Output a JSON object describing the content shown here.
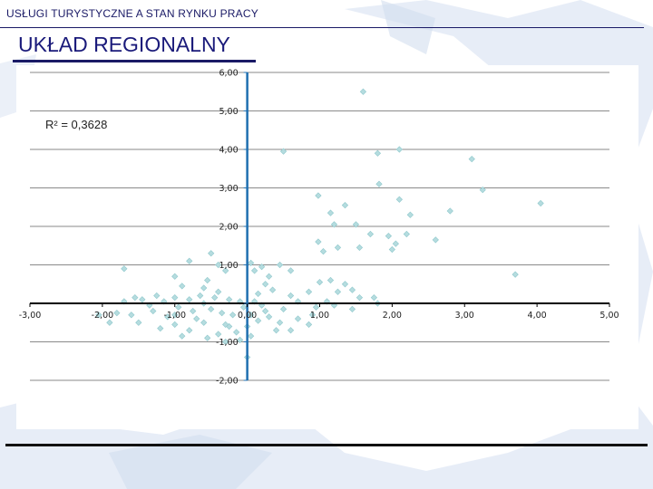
{
  "header": {
    "title": "USŁUGI TURYSTYCZNE A STAN RYNKU PRACY"
  },
  "slide": {
    "title": "UKŁAD REGIONALNY"
  },
  "colors": {
    "point": "#b5dcdf",
    "point_stroke": "#8fc8cc",
    "y_axis": "#1f6fb0",
    "grid": "#8a8a8a",
    "map": "#dde6f4"
  },
  "chart_data": {
    "type": "scatter",
    "xlim": [
      -3,
      5
    ],
    "ylim": [
      -2,
      6
    ],
    "grid": "horizontal",
    "x_ticks": [
      "-3,00",
      "-2,00",
      "-1,00",
      "0,00",
      "1,00",
      "2,00",
      "3,00",
      "4,00",
      "5,00"
    ],
    "y_ticks": [
      "-2,00",
      "-1,00",
      "0,00",
      "1,00",
      "2,00",
      "3,00",
      "4,00",
      "5,00",
      "6,00"
    ],
    "annotation": "R² = 0,3628",
    "points": [
      [
        1.6,
        5.5
      ],
      [
        0.5,
        3.95
      ],
      [
        1.8,
        3.9
      ],
      [
        2.1,
        4.0
      ],
      [
        3.1,
        3.75
      ],
      [
        0.98,
        2.8
      ],
      [
        1.82,
        3.1
      ],
      [
        2.1,
        2.7
      ],
      [
        3.25,
        2.95
      ],
      [
        1.35,
        2.55
      ],
      [
        1.15,
        2.35
      ],
      [
        1.5,
        2.05
      ],
      [
        2.25,
        2.3
      ],
      [
        2.8,
        2.4
      ],
      [
        4.05,
        2.6
      ],
      [
        1.2,
        2.05
      ],
      [
        0.98,
        1.6
      ],
      [
        1.25,
        1.45
      ],
      [
        1.55,
        1.45
      ],
      [
        1.7,
        1.8
      ],
      [
        1.95,
        1.75
      ],
      [
        2.2,
        1.8
      ],
      [
        2.05,
        1.55
      ],
      [
        2.6,
        1.65
      ],
      [
        2.0,
        1.4
      ],
      [
        1.05,
        1.35
      ],
      [
        3.7,
        0.75
      ],
      [
        0.45,
        1.0
      ],
      [
        0.6,
        0.85
      ],
      [
        0.3,
        0.7
      ],
      [
        0.2,
        0.95
      ],
      [
        0.05,
        1.05
      ],
      [
        0.1,
        0.85
      ],
      [
        -0.5,
        1.3
      ],
      [
        -0.8,
        1.1
      ],
      [
        -1.7,
        0.9
      ],
      [
        -0.4,
        1.0
      ],
      [
        -0.3,
        0.85
      ],
      [
        -1.0,
        0.7
      ],
      [
        -0.9,
        0.45
      ],
      [
        -0.55,
        0.6
      ],
      [
        -0.6,
        0.4
      ],
      [
        0.25,
        0.5
      ],
      [
        0.35,
        0.35
      ],
      [
        0.6,
        0.2
      ],
      [
        0.85,
        0.3
      ],
      [
        1.0,
        0.55
      ],
      [
        1.15,
        0.6
      ],
      [
        1.35,
        0.5
      ],
      [
        1.25,
        0.3
      ],
      [
        1.45,
        0.35
      ],
      [
        1.55,
        0.15
      ],
      [
        1.75,
        0.15
      ],
      [
        1.8,
        0.0
      ],
      [
        1.45,
        -0.15
      ],
      [
        1.2,
        -0.05
      ],
      [
        0.95,
        -0.1
      ],
      [
        0.9,
        -0.3
      ],
      [
        0.7,
        -0.4
      ],
      [
        0.85,
        -0.55
      ],
      [
        0.6,
        -0.7
      ],
      [
        0.4,
        -0.7
      ],
      [
        0.45,
        -0.5
      ],
      [
        0.3,
        -0.35
      ],
      [
        0.15,
        -0.45
      ],
      [
        0.05,
        -0.3
      ],
      [
        0.0,
        -0.6
      ],
      [
        0.05,
        -0.85
      ],
      [
        -0.1,
        -0.95
      ],
      [
        0.0,
        -1.4
      ],
      [
        -0.15,
        -0.75
      ],
      [
        -0.25,
        -0.6
      ],
      [
        -0.4,
        -0.8
      ],
      [
        -0.55,
        -0.9
      ],
      [
        -0.3,
        -1.0
      ],
      [
        -0.6,
        -0.5
      ],
      [
        -0.8,
        -0.7
      ],
      [
        -1.0,
        -0.55
      ],
      [
        -1.2,
        -0.65
      ],
      [
        -1.1,
        -0.35
      ],
      [
        -1.3,
        -0.2
      ],
      [
        -1.5,
        -0.5
      ],
      [
        -1.6,
        -0.3
      ],
      [
        -1.8,
        -0.25
      ],
      [
        -1.9,
        -0.5
      ],
      [
        -2.05,
        -0.3
      ],
      [
        -1.7,
        0.05
      ],
      [
        -1.45,
        0.1
      ],
      [
        -1.25,
        0.2
      ],
      [
        -1.0,
        0.15
      ],
      [
        -0.8,
        0.1
      ],
      [
        -0.65,
        0.2
      ],
      [
        -0.45,
        0.15
      ],
      [
        -0.25,
        0.1
      ],
      [
        -0.1,
        0.05
      ],
      [
        0.1,
        0.05
      ],
      [
        0.2,
        -0.05
      ],
      [
        -0.35,
        -0.25
      ],
      [
        -0.75,
        -0.2
      ],
      [
        -0.95,
        -0.1
      ],
      [
        -1.15,
        0.05
      ],
      [
        -1.35,
        -0.05
      ],
      [
        -1.55,
        0.15
      ],
      [
        -0.5,
        -0.15
      ],
      [
        -0.2,
        -0.3
      ],
      [
        0.25,
        -0.2
      ],
      [
        0.5,
        -0.15
      ],
      [
        0.7,
        0.05
      ],
      [
        1.1,
        0.05
      ],
      [
        -0.7,
        -0.4
      ],
      [
        -0.9,
        -0.85
      ],
      [
        -0.3,
        -0.55
      ],
      [
        -0.05,
        -0.1
      ],
      [
        0.15,
        0.25
      ],
      [
        -0.6,
        0.0
      ],
      [
        -1.0,
        -0.3
      ],
      [
        -0.4,
        0.3
      ]
    ]
  }
}
